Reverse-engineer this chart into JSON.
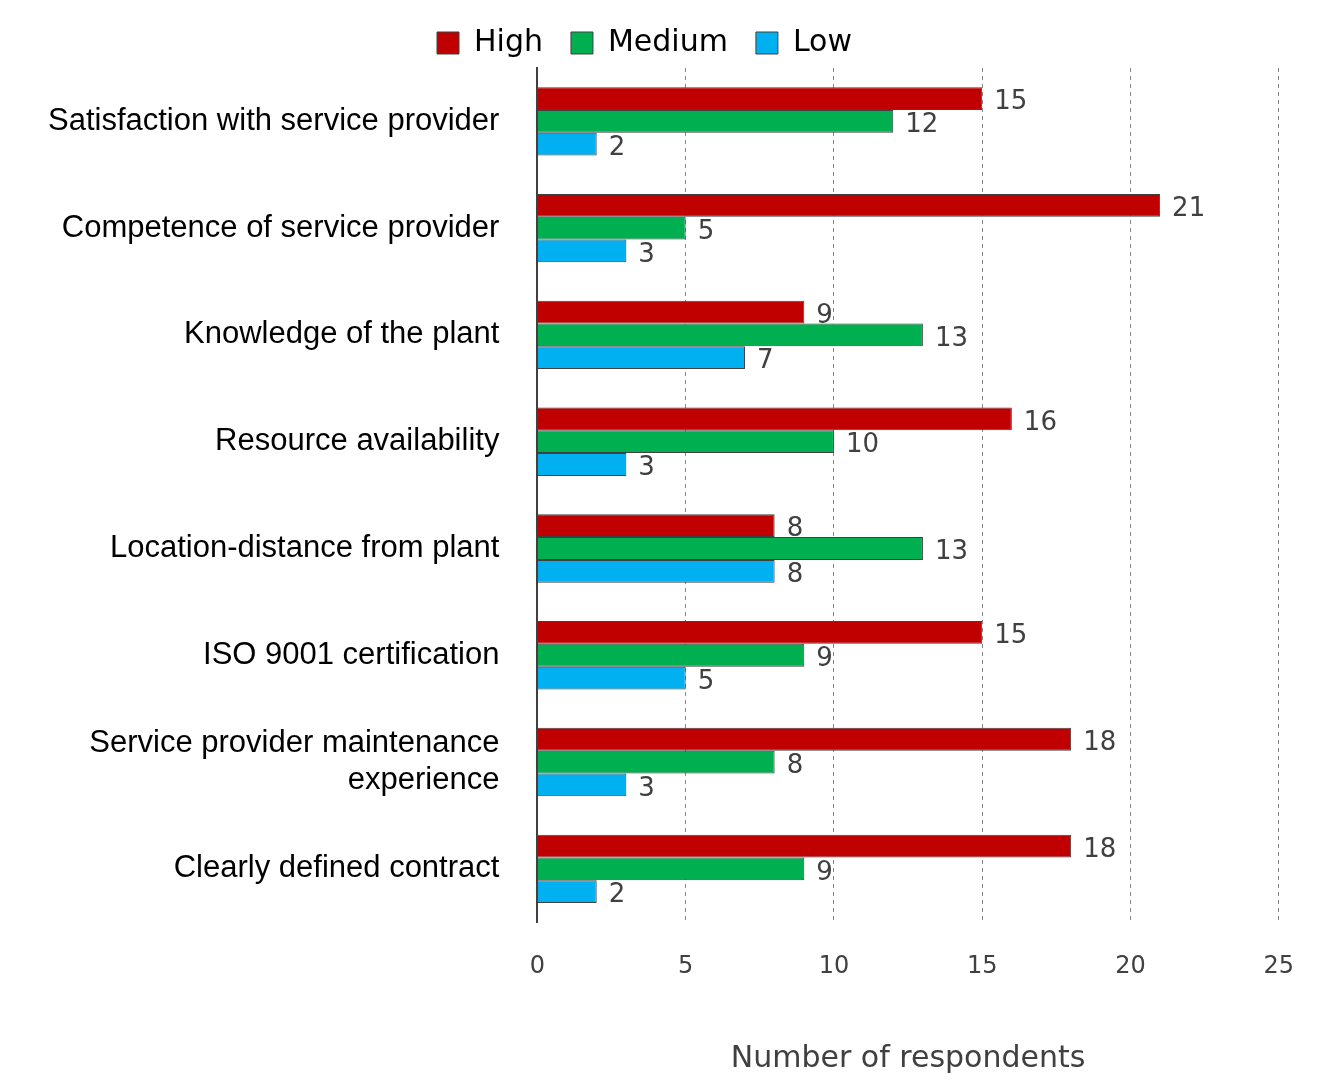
{
  "chart_data": {
    "type": "bar",
    "orientation": "horizontal",
    "xlabel": "Number of respondents",
    "categories": [
      "Satisfaction with service provider",
      "Competence of service provider",
      "Knowledge of the plant",
      "Resource availability",
      "Location-distance from plant",
      "ISO 9001 certification",
      "Service provider maintenance experience",
      "Clearly defined contract"
    ],
    "series": [
      {
        "name": "High",
        "color": "#c00000",
        "values": [
          15,
          21,
          9,
          16,
          8,
          15,
          18,
          18
        ]
      },
      {
        "name": "Medium",
        "color": "#00b050",
        "values": [
          12,
          5,
          13,
          10,
          13,
          9,
          8,
          9
        ]
      },
      {
        "name": "Low",
        "color": "#00b0f0",
        "values": [
          2,
          3,
          7,
          3,
          8,
          5,
          3,
          2
        ]
      }
    ],
    "xlim": [
      0,
      25
    ],
    "xticks": [
      0,
      5,
      10,
      15,
      20,
      25
    ],
    "grid": "x",
    "legend": "top",
    "data_labels": true
  }
}
